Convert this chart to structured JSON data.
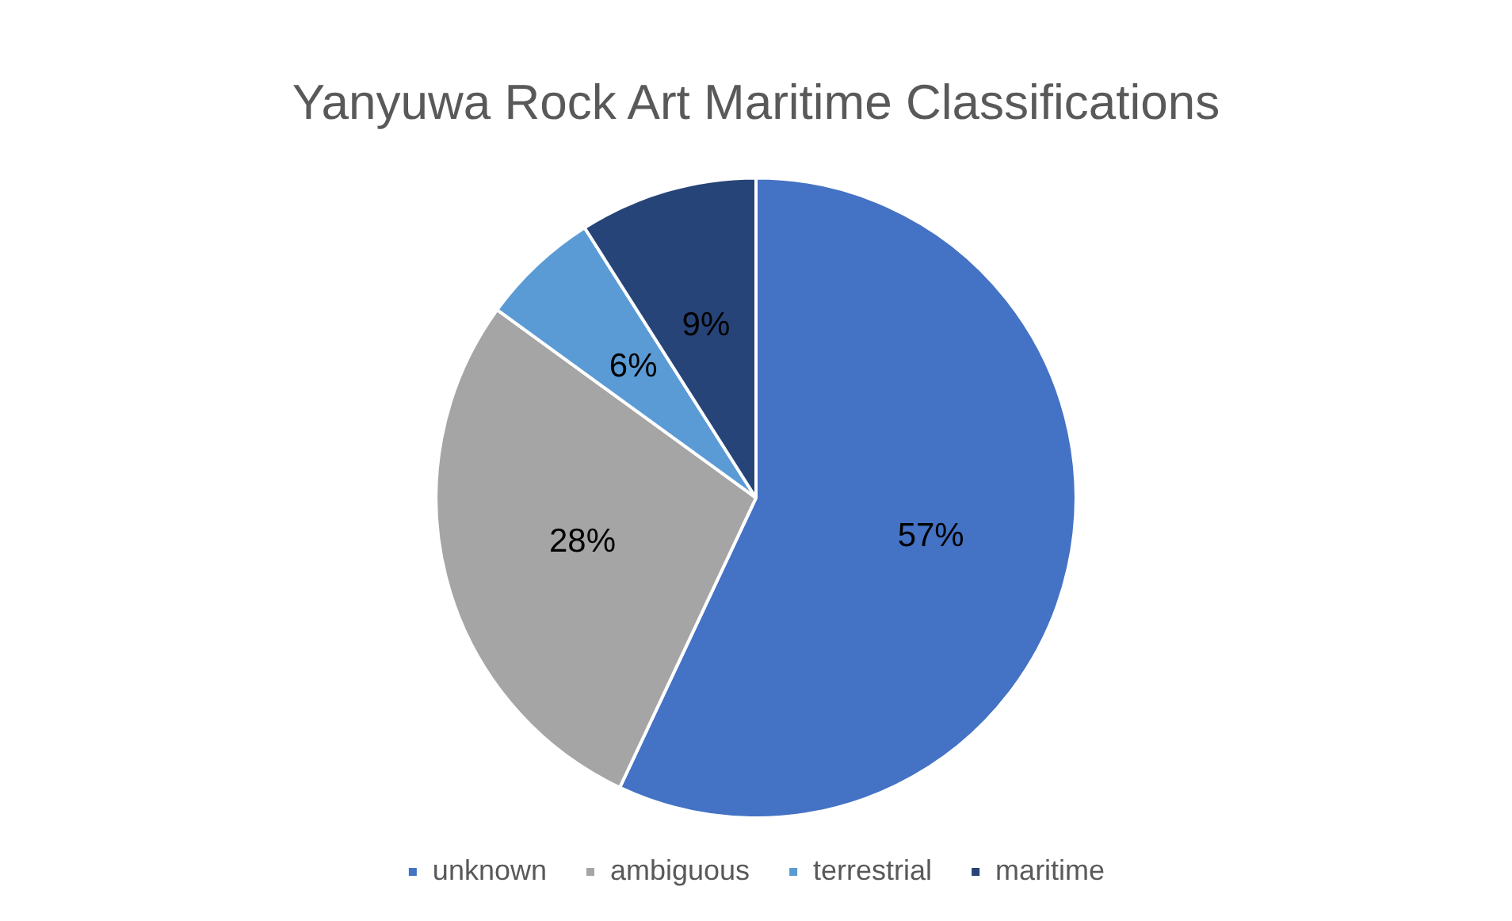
{
  "chart_data": {
    "type": "pie",
    "title": "Yanyuwa Rock Art Maritime Classifications",
    "categories": [
      "unknown",
      "ambiguous",
      "terrestrial",
      "maritime"
    ],
    "values": [
      57,
      28,
      6,
      9
    ],
    "colors": [
      "#4472c4",
      "#a5a5a5",
      "#5b9bd5",
      "#264478"
    ],
    "value_labels": [
      "57%",
      "28%",
      "6%",
      "9%"
    ],
    "legend": "bottom"
  }
}
